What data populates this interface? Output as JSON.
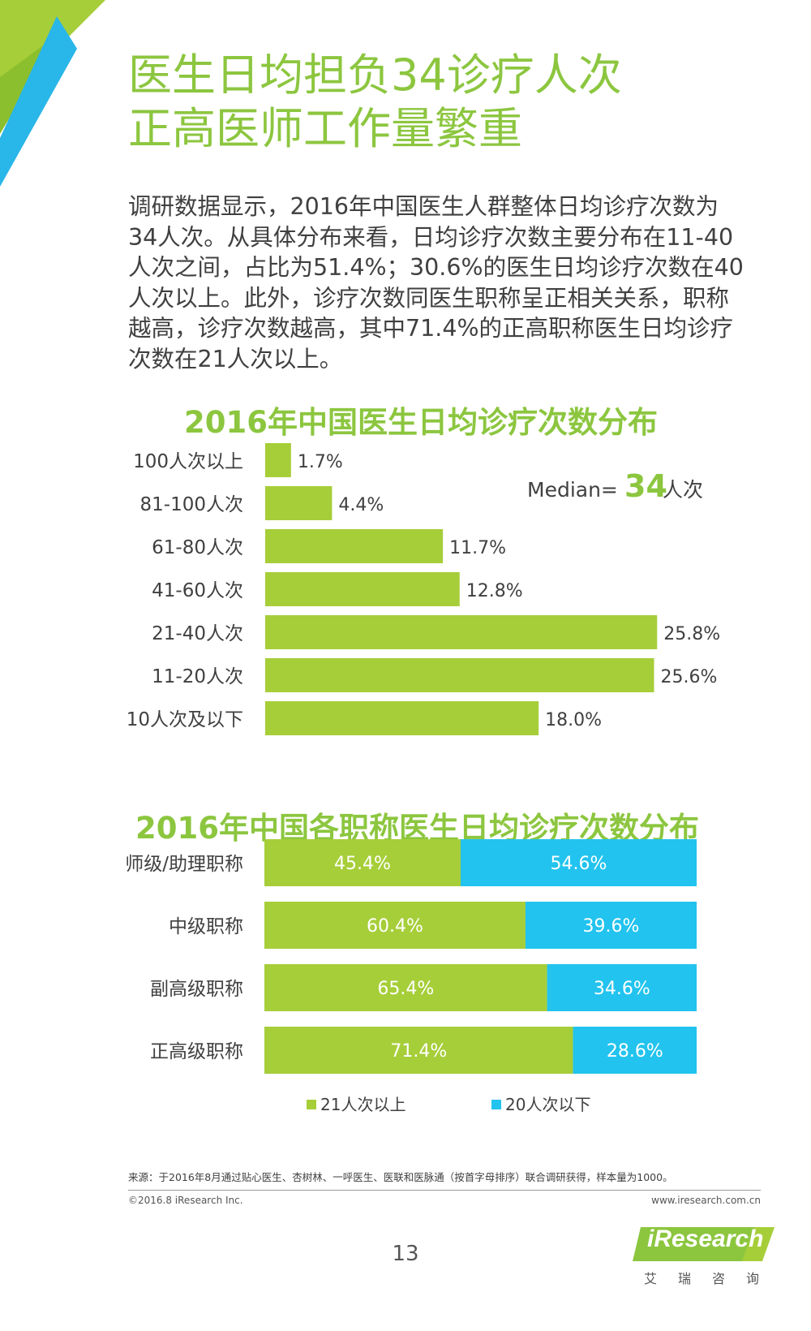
{
  "title": {
    "line1": "医生日均担负34诊疗人次",
    "line2": "正高医师工作量繁重"
  },
  "intro": "调研数据显示，2016年中国医生人群整体日均诊疗次数为34人次。从具体分布来看，日均诊疗次数主要分布在11-40人次之间，占比为51.4%；30.6%的医生日均诊疗次数在40人次以上。此外，诊疗次数同医生职称呈正相关关系，职称越高，诊疗次数越高，其中71.4%的正高职称医生日均诊疗次数在21人次以上。",
  "colors": {
    "green": "#a6ce39",
    "blue": "#22c3ee",
    "title_green": "#8cc63f"
  },
  "chart_data": [
    {
      "type": "bar",
      "orientation": "horizontal",
      "title": "2016年中国医生日均诊疗次数分布",
      "categories": [
        "100人次以上",
        "81-100人次",
        "61-80人次",
        "41-60人次",
        "21-40人次",
        "11-20人次",
        "10人次及以下"
      ],
      "values": [
        1.7,
        4.4,
        11.7,
        12.8,
        25.8,
        25.6,
        18.0
      ],
      "value_labels": [
        "1.7%",
        "4.4%",
        "11.7%",
        "12.8%",
        "25.8%",
        "25.6%",
        "18.0%"
      ],
      "unit": "%",
      "xlim": [
        0,
        26
      ],
      "annotation": {
        "prefix": "Median=",
        "value": "34",
        "suffix": "人次"
      }
    },
    {
      "type": "bar",
      "orientation": "horizontal",
      "stacked": true,
      "title": "2016年中国各职称医生日均诊疗次数分布",
      "categories": [
        "师级/助理职称",
        "中级职称",
        "副高级职称",
        "正高级职称"
      ],
      "series": [
        {
          "name": "21人次以上",
          "values": [
            45.4,
            60.4,
            65.4,
            71.4
          ],
          "labels": [
            "45.4%",
            "60.4%",
            "65.4%",
            "71.4%"
          ]
        },
        {
          "name": "20人次以下",
          "values": [
            54.6,
            39.6,
            34.6,
            28.6
          ],
          "labels": [
            "54.6%",
            "39.6%",
            "34.6%",
            "28.6%"
          ]
        }
      ],
      "xlim": [
        0,
        100
      ],
      "legend": "bottom"
    }
  ],
  "footer": {
    "source": "来源：于2016年8月通过贴心医生、杏树林、一呼医生、医联和医脉通（按首字母排序）联合调研获得，样本量为1000。",
    "copyright": "©2016.8 iResearch Inc.",
    "url": "www.iresearch.com.cn",
    "page_number": "13",
    "brand_en": "iResearch",
    "brand_cn": "艾瑞咨询"
  }
}
